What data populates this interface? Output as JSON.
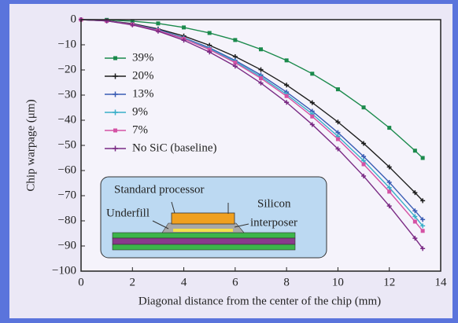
{
  "chart_data": {
    "type": "line",
    "x_label": "Diagonal distance from the center of the chip  (mm)",
    "y_label": "Chip warpage  (μm)",
    "x": [
      0,
      1,
      2,
      3,
      4,
      5,
      6,
      7,
      8,
      9,
      10,
      11,
      12,
      13,
      13.3
    ],
    "series": [
      {
        "name": "39%",
        "color": "#1b8a4c",
        "marker": "square",
        "values": [
          0,
          -0.1,
          -0.6,
          -1.5,
          -3.1,
          -5.3,
          -8.1,
          -11.8,
          -16.2,
          -21.5,
          -27.7,
          -34.9,
          -43.0,
          -52.1,
          -55
        ]
      },
      {
        "name": "20%",
        "color": "#1e1e1e",
        "marker": "plus",
        "values": [
          0,
          -0.4,
          -1.6,
          -3.7,
          -6.5,
          -10.2,
          -14.7,
          -19.9,
          -26.0,
          -33.0,
          -40.7,
          -49.2,
          -58.6,
          -68.8,
          -72
        ]
      },
      {
        "name": "13%",
        "color": "#3a5cb4",
        "marker": "plus",
        "values": [
          0,
          -0.5,
          -1.8,
          -4.0,
          -7.2,
          -11.2,
          -16.2,
          -22.0,
          -28.8,
          -36.4,
          -44.9,
          -54.4,
          -64.7,
          -76.0,
          -79.5
        ]
      },
      {
        "name": "9%",
        "color": "#38aec8",
        "marker": "plus",
        "values": [
          0,
          -0.5,
          -1.9,
          -4.2,
          -7.4,
          -11.6,
          -16.7,
          -22.7,
          -29.7,
          -37.5,
          -46.4,
          -56.1,
          -66.8,
          -78.3,
          -82
        ]
      },
      {
        "name": "7%",
        "color": "#d452a4",
        "marker": "square",
        "values": [
          0,
          -0.5,
          -1.9,
          -4.3,
          -7.6,
          -11.9,
          -17.1,
          -23.3,
          -30.4,
          -38.5,
          -47.5,
          -57.5,
          -68.4,
          -80.3,
          -84
        ]
      },
      {
        "name": "No SiC (baseline)",
        "color": "#7a2a84",
        "marker": "plus",
        "values": [
          0,
          -0.5,
          -2.1,
          -4.6,
          -8.2,
          -12.9,
          -18.5,
          -25.2,
          -32.9,
          -41.7,
          -51.4,
          -62.2,
          -74.1,
          -86.9,
          -91
        ]
      }
    ],
    "xlim": [
      0,
      14
    ],
    "xticks": [
      0,
      2,
      4,
      6,
      8,
      10,
      12,
      14
    ],
    "ylim": [
      -100,
      0
    ],
    "yticks": [
      0,
      {
        "value": -10,
        "label": "−10"
      },
      {
        "value": -20,
        "label": "−20"
      },
      {
        "value": -30,
        "label": "−30"
      },
      {
        "value": -40,
        "label": "−40"
      },
      {
        "value": -50,
        "label": "−50"
      },
      {
        "value": -60,
        "label": "−60"
      },
      {
        "value": -70,
        "label": "−70"
      },
      {
        "value": -80,
        "label": "−80"
      },
      {
        "value": -90,
        "label": "−90"
      },
      {
        "value": -100,
        "label": "−100"
      }
    ],
    "legend": "upper left",
    "annotations": [
      "Standard processor",
      "Underfill",
      "Silicon",
      "interposer"
    ]
  }
}
